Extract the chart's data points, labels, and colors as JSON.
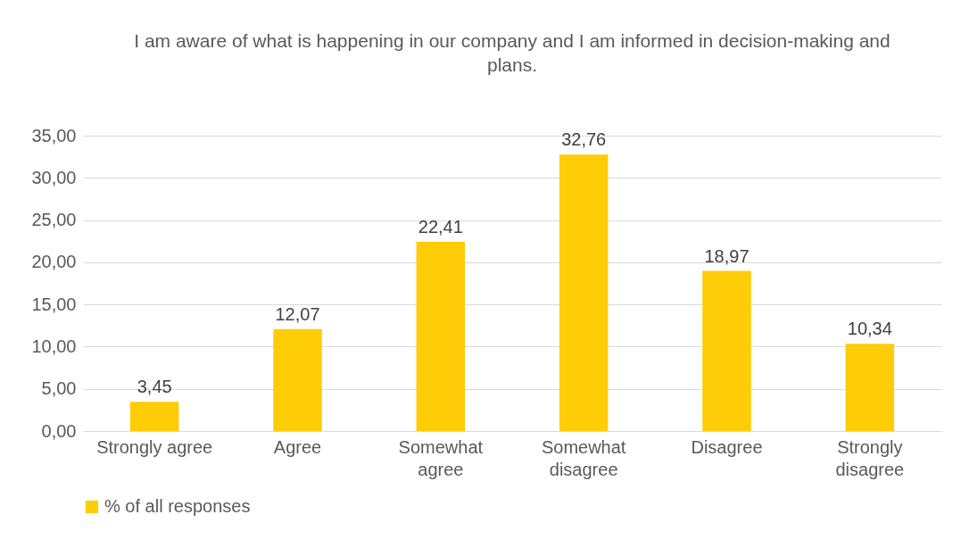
{
  "chart_data": {
    "type": "bar",
    "title": "I am aware of what is happening in our company and I am informed in decision-making and plans.",
    "categories": [
      "Strongly agree",
      "Agree",
      "Somewhat agree",
      "Somewhat disagree",
      "Disagree",
      "Strongly disagree"
    ],
    "series": [
      {
        "name": "% of all responses",
        "color": "#ffcc08",
        "values": [
          3.45,
          12.07,
          22.41,
          32.76,
          18.97,
          10.34
        ],
        "value_labels": [
          "3,45",
          "12,07",
          "22,41",
          "32,76",
          "18,97",
          "10,34"
        ]
      }
    ],
    "ylim": [
      0,
      35
    ],
    "yticks": [
      {
        "value": 0,
        "label": "0,00"
      },
      {
        "value": 5,
        "label": "5,00"
      },
      {
        "value": 10,
        "label": "10,00"
      },
      {
        "value": 15,
        "label": "15,00"
      },
      {
        "value": 20,
        "label": "20,00"
      },
      {
        "value": 25,
        "label": "25,00"
      },
      {
        "value": 30,
        "label": "30,00"
      },
      {
        "value": 35,
        "label": "35,00"
      }
    ],
    "grid": "y",
    "legend": "bottom"
  }
}
